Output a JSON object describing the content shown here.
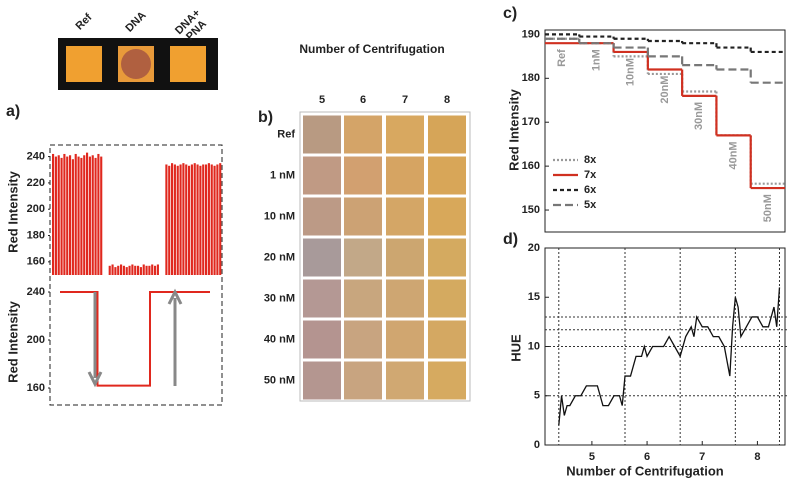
{
  "panel_a_image": {
    "label": "a)",
    "samples": [
      "Ref",
      "DNA",
      "DNA+\nPNA"
    ]
  },
  "panel_b": {
    "label": "b)",
    "title": "Number of Centrifugation",
    "columns": [
      "5",
      "6",
      "7",
      "8"
    ],
    "rows": [
      "Ref",
      "1 nM",
      "10 nM",
      "20 nM",
      "30 nM",
      "40 nM",
      "50 nM"
    ],
    "colors": [
      [
        "#b89a82",
        "#d4a468",
        "#d8a860",
        "#d6a558"
      ],
      [
        "#c09a84",
        "#d2a070",
        "#d6a462",
        "#d8a658"
      ],
      [
        "#bc9a86",
        "#cca274",
        "#d4a666",
        "#d8a85a"
      ],
      [
        "#a89a9a",
        "#c2a888",
        "#cca670",
        "#d4aa60"
      ],
      [
        "#b49894",
        "#c8a67e",
        "#cea672",
        "#d4aa60"
      ],
      [
        "#b49490",
        "#c8a480",
        "#d0a670",
        "#d4a862"
      ],
      [
        "#b49690",
        "#c8a480",
        "#d0a872",
        "#d6aa60"
      ]
    ]
  },
  "chart_data": [
    {
      "type": "bar",
      "ylabel": "Red Intensity",
      "color": "#e0281e",
      "ylim": [
        150,
        245
      ],
      "yticks": [
        160,
        180,
        200,
        220,
        240
      ],
      "values": [
        242,
        240,
        241,
        239,
        242,
        240,
        241,
        238,
        242,
        240,
        239,
        241,
        243,
        240,
        241,
        239,
        242,
        240,
        null,
        null,
        157,
        158,
        156,
        157,
        158,
        157,
        156,
        157,
        158,
        157,
        157,
        156,
        158,
        157,
        157,
        158,
        157,
        158,
        null,
        null,
        234,
        233,
        235,
        234,
        233,
        234,
        235,
        234,
        233,
        234,
        235,
        234,
        233,
        234,
        234,
        235,
        234,
        233,
        234,
        235
      ]
    },
    {
      "type": "line",
      "ylabel": "Red Intensity",
      "color": "#e0281e",
      "x": [
        0,
        0.25,
        0.25,
        0.6,
        0.6,
        1
      ],
      "xlim": [
        0,
        1
      ],
      "values": [
        240,
        240,
        162,
        162,
        240,
        240
      ],
      "ylim": [
        150,
        250
      ],
      "yticks": [
        160,
        200,
        240
      ]
    },
    {
      "type": "step",
      "label": "c)",
      "ylabel": "Red Intensity",
      "categories": [
        "Ref",
        "1nM",
        "10nM",
        "20nM",
        "30nM",
        "40nM",
        "50nM"
      ],
      "ylim": [
        145,
        191
      ],
      "yticks": [
        150,
        160,
        170,
        180,
        190
      ],
      "legend": "lower left",
      "series": [
        {
          "name": "8x",
          "color": "#999999",
          "dash": "2 2",
          "values": [
            189,
            188,
            185,
            181,
            177,
            167,
            156
          ]
        },
        {
          "name": "7x",
          "color": "#d03020",
          "dash": "none",
          "values": [
            188,
            188,
            186,
            182,
            176,
            167,
            155
          ]
        },
        {
          "name": "6x",
          "color": "#222222",
          "dash": "4 3",
          "values": [
            190,
            189.5,
            189,
            188.5,
            188,
            187,
            186
          ]
        },
        {
          "name": "5x",
          "color": "#777777",
          "dash": "8 4",
          "values": [
            189,
            188,
            187,
            185,
            183,
            182,
            179
          ]
        }
      ]
    },
    {
      "type": "line",
      "label": "d)",
      "xlabel": "Number of Centrifugation",
      "ylabel": "HUE",
      "color": "#111111",
      "xlim": [
        4.15,
        8.5
      ],
      "ylim": [
        0,
        20
      ],
      "xticks": [
        5,
        6,
        7,
        8
      ],
      "yticks": [
        0,
        5,
        10,
        15,
        20
      ],
      "hlines": [
        5,
        10,
        11.7,
        13
      ],
      "vlines": [
        4.4,
        5.6,
        6.6,
        7.6,
        8.4
      ],
      "x": [
        4.4,
        4.45,
        4.5,
        4.55,
        4.6,
        4.7,
        4.8,
        4.9,
        5.0,
        5.1,
        5.15,
        5.2,
        5.3,
        5.4,
        5.5,
        5.55,
        5.6,
        5.7,
        5.75,
        5.8,
        5.9,
        5.95,
        6.0,
        6.1,
        6.2,
        6.3,
        6.4,
        6.5,
        6.6,
        6.7,
        6.8,
        6.85,
        6.9,
        7.0,
        7.1,
        7.2,
        7.3,
        7.4,
        7.5,
        7.55,
        7.6,
        7.65,
        7.7,
        7.8,
        7.9,
        8.0,
        8.1,
        8.2,
        8.3,
        8.35,
        8.4
      ],
      "values": [
        2,
        5,
        3,
        4,
        4,
        5,
        5,
        6,
        6,
        6,
        5,
        4,
        4,
        5,
        5,
        4,
        7,
        7,
        8,
        9,
        9,
        10,
        9,
        10,
        10,
        10,
        11,
        10,
        9,
        11,
        12,
        11,
        13,
        12,
        12,
        11,
        11,
        10,
        7,
        12,
        15,
        14,
        11,
        12,
        13,
        13,
        12,
        12,
        14,
        12,
        16
      ]
    }
  ]
}
